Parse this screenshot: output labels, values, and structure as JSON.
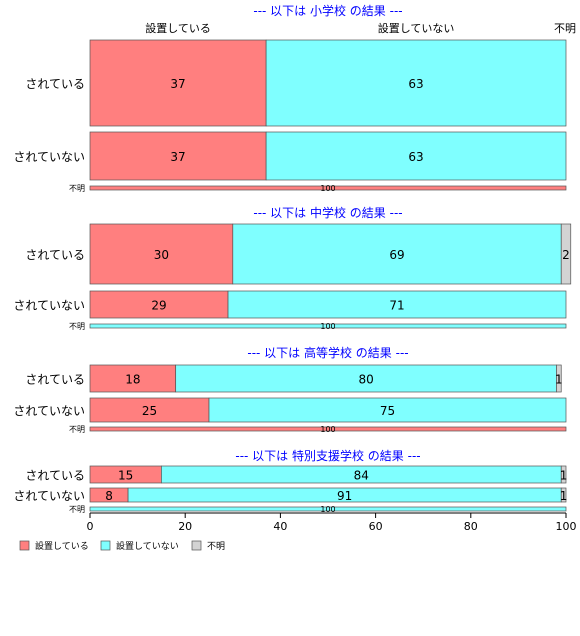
{
  "chart_data": {
    "type": "bar",
    "orientation": "horizontal",
    "stacked": true,
    "category_labels": [
      "設置している",
      "設置していない",
      "不明"
    ],
    "colors": {
      "設置している": "#ff7f7f",
      "設置していない": "#7fffff",
      "不明": "#d3d3d3",
      "panel_title": "#0000ff"
    },
    "panels": [
      {
        "title": "--- 以下は 小学校 の結果 ---",
        "rows": [
          {
            "label": "されている",
            "values": [
              37,
              63,
              0
            ],
            "labels": [
              "37",
              "63",
              ""
            ]
          },
          {
            "label": "されていない",
            "values": [
              37,
              63,
              0
            ],
            "labels": [
              "37",
              "63",
              ""
            ]
          },
          {
            "label": "不明",
            "values": [
              100,
              0,
              0
            ],
            "labels": [
              "100",
              "",
              ""
            ]
          }
        ]
      },
      {
        "title": "--- 以下は 中学校 の結果 ---",
        "rows": [
          {
            "label": "されている",
            "values": [
              30,
              69,
              2
            ],
            "labels": [
              "30",
              "69",
              "2"
            ]
          },
          {
            "label": "されていない",
            "values": [
              29,
              71,
              0
            ],
            "labels": [
              "29",
              "71",
              ""
            ]
          },
          {
            "label": "不明",
            "values": [
              0,
              100,
              0
            ],
            "labels": [
              "",
              "100",
              ""
            ]
          }
        ]
      },
      {
        "title": "--- 以下は 高等学校 の結果 ---",
        "rows": [
          {
            "label": "されている",
            "values": [
              18,
              80,
              1
            ],
            "labels": [
              "18",
              "80",
              "1"
            ]
          },
          {
            "label": "されていない",
            "values": [
              25,
              75,
              0
            ],
            "labels": [
              "25",
              "75",
              ""
            ]
          },
          {
            "label": "不明",
            "values": [
              100,
              0,
              0
            ],
            "labels": [
              "100",
              "",
              ""
            ]
          }
        ]
      },
      {
        "title": "--- 以下は 特別支援学校 の結果 ---",
        "rows": [
          {
            "label": "されている",
            "values": [
              15,
              84,
              1
            ],
            "labels": [
              "15",
              "84",
              "1"
            ]
          },
          {
            "label": "されていない",
            "values": [
              8,
              91,
              1
            ],
            "labels": [
              "8",
              "91",
              "1"
            ]
          },
          {
            "label": "不明",
            "values": [
              0,
              100,
              0
            ],
            "labels": [
              "",
              "100",
              ""
            ]
          }
        ]
      }
    ],
    "xticks": [
      0,
      20,
      40,
      60,
      80,
      100
    ],
    "xlim": [
      0,
      100
    ],
    "legend": {
      "position": "bottom-left",
      "entries": [
        "設置している",
        "設置していない",
        "不明"
      ]
    }
  }
}
